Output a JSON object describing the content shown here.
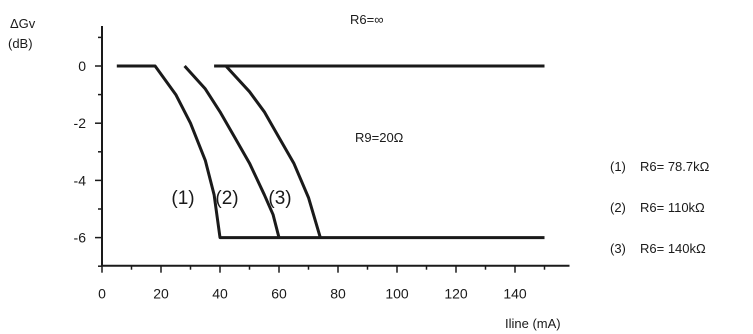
{
  "chart_data": {
    "type": "line",
    "ylabel": "ΔGv",
    "yunit": "(dB)",
    "xlabel": "Iline (mA)",
    "xlim": [
      0,
      150
    ],
    "ylim": [
      -7,
      2
    ],
    "xticks": [
      "0",
      "20",
      "40",
      "60",
      "80",
      "100",
      "120",
      "140"
    ],
    "yticks": [
      "0",
      "-2",
      "-4",
      "-6"
    ],
    "annotations": {
      "top": "R6=∞",
      "mid": "R9=20Ω"
    },
    "series": [
      {
        "name": "(1)",
        "label": "(1)",
        "legend": "R6= 78.7kΩ",
        "x": [
          5,
          10,
          18,
          25,
          30,
          35,
          38,
          40,
          150
        ],
        "y": [
          0,
          0,
          0,
          -1.0,
          -2.0,
          -3.3,
          -4.5,
          -6,
          -6
        ]
      },
      {
        "name": "(2)",
        "label": "(2)",
        "legend": "R6= 110kΩ",
        "x": [
          28,
          35,
          40,
          45,
          50,
          55,
          58,
          60
        ],
        "y": [
          0,
          -0.8,
          -1.6,
          -2.5,
          -3.4,
          -4.5,
          -5.2,
          -6
        ]
      },
      {
        "name": "(3)",
        "label": "(3)",
        "legend": "R6= 140kΩ",
        "x": [
          38,
          42,
          50,
          55,
          60,
          65,
          70,
          74
        ],
        "y": [
          0,
          0,
          -0.9,
          -1.6,
          -2.5,
          -3.4,
          -4.6,
          -6
        ]
      },
      {
        "name": "R6=∞",
        "x": [
          42,
          150
        ],
        "y": [
          0,
          0
        ]
      }
    ]
  }
}
